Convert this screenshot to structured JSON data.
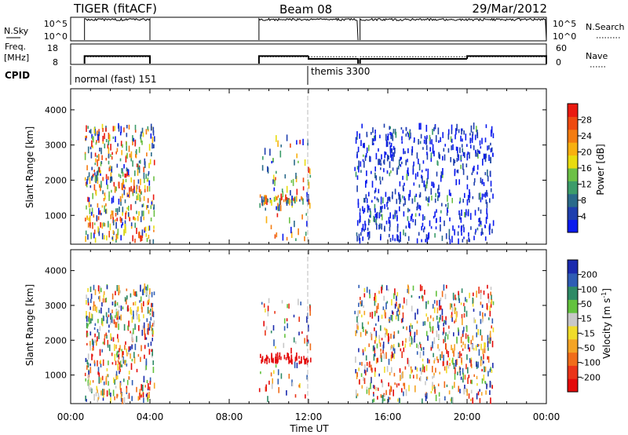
{
  "header": {
    "title": "TIGER (fitACF)",
    "beam": "Beam 08",
    "date": "29/Mar/2012"
  },
  "panels": {
    "nsky": {
      "label": "N.Sky",
      "ticks": [
        "10^5",
        "10^0"
      ],
      "right_ticks": [
        "10^5",
        "10^0"
      ],
      "right_label": "N.Search"
    },
    "freq": {
      "label_line1": "Freq.",
      "label_line2": "[MHz]",
      "ticks": [
        "18",
        "8"
      ],
      "right_ticks": [
        "60",
        "0"
      ],
      "right_label": "Nave"
    },
    "cpid": {
      "label": "CPID",
      "modes": [
        "normal (fast) 151",
        "themis 3300"
      ]
    }
  },
  "axes": {
    "ylabel": "Slant Range [km]",
    "xlabel": "Time UT",
    "yticks": [
      "1000",
      "2000",
      "3000",
      "4000"
    ],
    "xticks": [
      "00:00",
      "04:00",
      "08:00",
      "12:00",
      "16:00",
      "20:00",
      "00:00"
    ]
  },
  "colorbars": {
    "power": {
      "label": "Power [dB]",
      "ticks": [
        "4",
        "8",
        "12",
        "16",
        "20",
        "24",
        "28"
      ],
      "colors": [
        "#0a1aee",
        "#1f3fae",
        "#2a6a8a",
        "#3c9c6a",
        "#6cc046",
        "#e8dc10",
        "#f8b010",
        "#f47c10",
        "#ee4a10",
        "#ea1a10"
      ]
    },
    "velocity": {
      "label": "Velocity [m s",
      "label_sup": "-1",
      "label_end": "]",
      "ticks": [
        "200",
        "100",
        "50",
        "15",
        "-15",
        "-50",
        "-100",
        "-200"
      ],
      "colors": [
        "#1a2aae",
        "#2e5cb4",
        "#2e8a66",
        "#63c23e",
        "#c8c8c8",
        "#f0dc2a",
        "#f4a426",
        "#f06c1a",
        "#ea3418",
        "#e40a0a"
      ]
    }
  },
  "chart_data": {
    "type": "heatmap",
    "title": "TIGER (fitACF) Beam 08 29/Mar/2012",
    "xlabel": "Time UT",
    "ylabel": "Slant Range [km]",
    "xlim_hours": [
      0,
      24
    ],
    "ylim_km": [
      180,
      4600
    ],
    "scatter_blocks_hours": [
      [
        0.7,
        4.2
      ],
      [
        9.5,
        12.1
      ],
      [
        14.3,
        21.3
      ]
    ],
    "nsky": {
      "ylim_log10": [
        0,
        5
      ],
      "on_intervals_hours": [
        [
          0.7,
          4.0
        ],
        [
          9.5,
          14.5
        ],
        [
          14.6,
          24.0
        ]
      ],
      "level_log10": 4.6
    },
    "freq_mhz": {
      "ylim": [
        8,
        18
      ],
      "segments": [
        {
          "start_hour": 0.7,
          "end_hour": 4.0,
          "freq": 12.0
        },
        {
          "start_hour": 9.5,
          "end_hour": 12.0,
          "freq": 12.0
        },
        {
          "start_hour": 12.0,
          "end_hour": 14.5,
          "freq": 10.5
        },
        {
          "start_hour": 14.6,
          "end_hour": 20.0,
          "freq": 10.5
        },
        {
          "start_hour": 20.0,
          "end_hour": 24.0,
          "freq": 12.0
        }
      ]
    },
    "nave": {
      "ylim": [
        0,
        60
      ],
      "level": 22
    },
    "cpid": [
      {
        "start_hour": 0.0,
        "name": "normal (fast) 151"
      },
      {
        "start_hour": 12.0,
        "name": "themis 3300"
      }
    ],
    "power_range_db": [
      0,
      30
    ],
    "velocity_range_ms": [
      -250,
      250
    ],
    "grid": false
  }
}
